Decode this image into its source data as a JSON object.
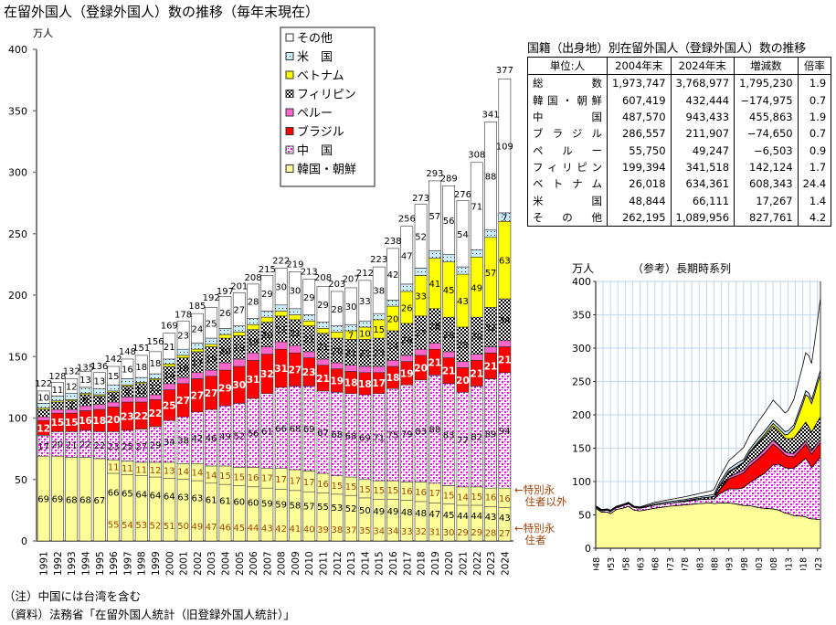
{
  "title": "在留外国人（登録外国人）数の推移（毎年末現在）",
  "notes": [
    "（注）中国には台湾を含む",
    "（資料）法務省「在留外国人統計（旧登録外国人統計）」"
  ],
  "annotations": {
    "non_special": "←特別永\n　住者以外",
    "special": "←特別永\n　住者"
  },
  "colors": {
    "korea": "#ffff99",
    "china": "#ff00ff",
    "brazil": "#ff0000",
    "peru": "#ff66cc",
    "philippines": "#000000",
    "vietnam": "#ffff00",
    "usa": "#ccecff",
    "other": "#ffffff",
    "axis": "#808080",
    "annotation": "#a0420a"
  },
  "table": {
    "title": "国籍（出身地）別在留外国人（登録外国人）数の推移",
    "headers": [
      "単位:人",
      "2004年末",
      "2024年末",
      "増減数",
      "倍率"
    ],
    "rows": [
      [
        "総　数",
        "1,973,747",
        "3,768,977",
        "1,795,230",
        "1.9"
      ],
      [
        "韓国・朝鮮",
        "607,419",
        "432,444",
        "−174,975",
        "0.7"
      ],
      [
        "中　国",
        "487,570",
        "943,433",
        "455,863",
        "1.9"
      ],
      [
        "ブラジル",
        "286,557",
        "211,907",
        "−74,650",
        "0.7"
      ],
      [
        "ペルー",
        "55,750",
        "49,247",
        "−6,503",
        "0.9"
      ],
      [
        "フィリピン",
        "199,394",
        "341,518",
        "142,124",
        "1.7"
      ],
      [
        "ベトナム",
        "26,018",
        "634,361",
        "608,343",
        "24.4"
      ],
      [
        "米　国",
        "48,844",
        "66,111",
        "17,267",
        "1.4"
      ],
      [
        "その他",
        "262,195",
        "1,089,956",
        "827,761",
        "4.2"
      ]
    ]
  },
  "chart_data": [
    {
      "type": "bar",
      "stacked": true,
      "title": "在留外国人（登録外国人）数の推移（毎年末現在）",
      "ylabel": "万人",
      "ylim": [
        0,
        400
      ],
      "yticks": [
        0,
        50,
        100,
        150,
        200,
        250,
        300,
        350,
        400
      ],
      "legend_position": "top-center",
      "categories": [
        "1991",
        "1992",
        "1993",
        "1994",
        "1995",
        "1996",
        "1997",
        "1998",
        "1999",
        "2000",
        "2001",
        "2002",
        "2003",
        "2004",
        "2005",
        "2006",
        "2007",
        "2008",
        "2009",
        "2010",
        "2011",
        "2012",
        "2013",
        "2014",
        "2015",
        "2016",
        "2017",
        "2018",
        "2019",
        "2020",
        "2021",
        "2022",
        "2023",
        "2024"
      ],
      "totals": [
        122,
        128,
        132,
        135,
        136,
        142,
        148,
        151,
        156,
        169,
        178,
        185,
        192,
        197,
        201,
        208,
        215,
        222,
        219,
        213,
        208,
        203,
        207,
        212,
        223,
        238,
        256,
        273,
        293,
        289,
        276,
        308,
        341,
        377
      ],
      "series": [
        {
          "key": "korea",
          "name": "韓国・朝鮮",
          "values": [
            69,
            69,
            68,
            68,
            67,
            66,
            65,
            64,
            64,
            64,
            63,
            63,
            61,
            61,
            60,
            60,
            59,
            59,
            58,
            57,
            55,
            53,
            52,
            50,
            49,
            49,
            48,
            48,
            47,
            45,
            44,
            44,
            43,
            43
          ],
          "special_permanent": [
            null,
            null,
            null,
            null,
            null,
            55,
            54,
            53,
            52,
            51,
            50,
            49,
            47,
            46,
            45,
            44,
            43,
            42,
            41,
            40,
            39,
            38,
            37,
            35,
            34,
            34,
            33,
            32,
            31,
            30,
            29,
            29,
            28,
            27
          ],
          "non_special": [
            null,
            null,
            null,
            null,
            null,
            11,
            11,
            11,
            12,
            13,
            14,
            14,
            14,
            15,
            15,
            16,
            17,
            17,
            17,
            17,
            16,
            15,
            15,
            15,
            15,
            15,
            16,
            16,
            17,
            15,
            14,
            15,
            16,
            16
          ]
        },
        {
          "key": "china",
          "name": "中　国",
          "values": [
            17,
            20,
            21,
            22,
            22,
            23,
            25,
            27,
            29,
            34,
            38,
            42,
            46,
            49,
            52,
            56,
            61,
            66,
            68,
            69,
            67,
            68,
            68,
            69,
            71,
            75,
            79,
            83,
            88,
            83,
            77,
            82,
            89,
            94
          ]
        },
        {
          "key": "brazil",
          "name": "ブラジル",
          "values": [
            12,
            15,
            15,
            16,
            18,
            20,
            23,
            22,
            22,
            25,
            27,
            27,
            27,
            29,
            30,
            31,
            32,
            31,
            27,
            23,
            21,
            19,
            18,
            18,
            17,
            18,
            19,
            20,
            21,
            21,
            20,
            21,
            21,
            21
          ]
        },
        {
          "key": "peru",
          "name": "ペルー",
          "values": [
            3,
            3,
            3,
            4,
            4,
            4,
            4,
            4,
            4,
            5,
            5,
            5,
            5,
            6,
            6,
            6,
            6,
            6,
            6,
            5,
            5,
            5,
            5,
            5,
            5,
            5,
            5,
            5,
            5,
            5,
            5,
            5,
            5,
            5
          ]
        },
        {
          "key": "philippines",
          "name": "フィリピン",
          "values": [
            6,
            6,
            7,
            9,
            7,
            8,
            9,
            11,
            12,
            14,
            16,
            17,
            19,
            20,
            19,
            19,
            20,
            21,
            21,
            21,
            21,
            20,
            21,
            22,
            23,
            24,
            26,
            27,
            28,
            28,
            28,
            30,
            32,
            34
          ]
        },
        {
          "key": "vietnam",
          "name": "ベトナム",
          "values": [
            1,
            1,
            1,
            1,
            1,
            1,
            1,
            1,
            1,
            2,
            2,
            2,
            2,
            3,
            3,
            4,
            4,
            4,
            4,
            4,
            4,
            5,
            7,
            10,
            15,
            20,
            26,
            33,
            41,
            45,
            43,
            49,
            57,
            63
          ]
        },
        {
          "key": "usa",
          "name": "米　国",
          "values": [
            4,
            4,
            5,
            5,
            5,
            5,
            5,
            4,
            4,
            4,
            5,
            5,
            5,
            5,
            5,
            5,
            5,
            5,
            5,
            5,
            5,
            5,
            5,
            5,
            5,
            5,
            6,
            6,
            6,
            6,
            6,
            6,
            6,
            7
          ]
        },
        {
          "key": "other",
          "name": "その他",
          "values": [
            10,
            11,
            12,
            13,
            13,
            15,
            16,
            18,
            18,
            21,
            23,
            24,
            25,
            26,
            27,
            28,
            29,
            30,
            30,
            29,
            29,
            28,
            30,
            33,
            38,
            42,
            47,
            52,
            57,
            56,
            54,
            71,
            88,
            109
          ]
        }
      ],
      "legend_order": [
        "other",
        "usa",
        "vietnam",
        "philippines",
        "peru",
        "brazil",
        "china",
        "korea"
      ]
    },
    {
      "type": "area",
      "stacked": true,
      "title": "（参考）長期時系列",
      "ylabel": "万人",
      "ylim": [
        0,
        400
      ],
      "yticks": [
        0,
        50,
        100,
        150,
        200,
        250,
        300,
        350,
        400
      ],
      "grid": true,
      "xticks": [
        "1948",
        "1953",
        "1958",
        "1963",
        "1968",
        "1973",
        "1978",
        "1983",
        "1988",
        "1993",
        "1998",
        "2003",
        "2008",
        "2013",
        "2018",
        "2023"
      ],
      "x": [
        1948,
        1950,
        1952,
        1953,
        1955,
        1958,
        1959,
        1961,
        1963,
        1968,
        1973,
        1978,
        1983,
        1987,
        1988,
        1990,
        1993,
        1996,
        1998,
        2000,
        2003,
        2005,
        2008,
        2010,
        2012,
        2013,
        2015,
        2018,
        2019,
        2020,
        2021,
        2022,
        2023,
        2024
      ],
      "series": [
        {
          "key": "korea",
          "name": "韓国・朝鮮",
          "values": [
            60,
            54,
            54,
            52,
            58,
            61,
            63,
            57,
            56,
            60,
            63,
            65,
            67,
            68,
            67,
            68,
            68,
            66,
            64,
            64,
            61,
            60,
            59,
            57,
            53,
            52,
            49,
            48,
            47,
            45,
            44,
            44,
            43,
            43
          ]
        },
        {
          "key": "china",
          "name": "中　国",
          "values": [
            2,
            2,
            3,
            3,
            3,
            4,
            4,
            4,
            4,
            5,
            5,
            5,
            6,
            6,
            7,
            14,
            21,
            23,
            27,
            34,
            46,
            52,
            66,
            69,
            68,
            68,
            71,
            83,
            88,
            83,
            77,
            82,
            89,
            94
          ]
        },
        {
          "key": "brazil",
          "name": "ブラジル",
          "values": [
            0,
            0,
            0,
            0,
            0,
            0,
            0,
            0,
            0,
            0,
            0,
            0,
            0,
            0,
            0,
            6,
            15,
            20,
            22,
            25,
            27,
            30,
            31,
            23,
            19,
            18,
            17,
            20,
            21,
            21,
            20,
            21,
            21,
            21
          ]
        },
        {
          "key": "peru",
          "name": "ペルー",
          "values": [
            0,
            0,
            0,
            0,
            0,
            0,
            0,
            0,
            0,
            0,
            0,
            0,
            0,
            0,
            0,
            1,
            3,
            4,
            4,
            5,
            5,
            6,
            6,
            5,
            5,
            5,
            5,
            5,
            5,
            5,
            5,
            5,
            5,
            5
          ]
        },
        {
          "key": "philippines",
          "name": "フィリピン",
          "values": [
            0,
            0,
            0,
            0,
            0,
            0,
            0,
            0,
            0,
            0,
            0,
            1,
            2,
            3,
            4,
            5,
            7,
            9,
            11,
            14,
            19,
            19,
            21,
            21,
            20,
            21,
            23,
            27,
            28,
            28,
            28,
            30,
            32,
            34
          ]
        },
        {
          "key": "vietnam",
          "name": "ベトナム",
          "values": [
            0,
            0,
            0,
            0,
            0,
            0,
            0,
            0,
            0,
            0,
            0,
            0,
            0,
            0,
            0,
            1,
            1,
            1,
            1,
            2,
            2,
            3,
            4,
            4,
            5,
            7,
            15,
            33,
            41,
            45,
            43,
            49,
            57,
            63
          ]
        },
        {
          "key": "usa",
          "name": "米　国",
          "values": [
            1,
            1,
            1,
            1,
            1,
            1,
            1,
            1,
            1,
            2,
            2,
            2,
            2,
            3,
            3,
            4,
            4,
            5,
            4,
            4,
            5,
            5,
            5,
            5,
            5,
            5,
            5,
            6,
            6,
            6,
            6,
            6,
            6,
            7
          ]
        },
        {
          "key": "other",
          "name": "その他",
          "values": [
            1,
            1,
            1,
            1,
            1,
            1,
            1,
            1,
            1,
            2,
            3,
            4,
            5,
            6,
            7,
            8,
            12,
            15,
            18,
            21,
            25,
            27,
            30,
            29,
            28,
            30,
            38,
            52,
            57,
            56,
            54,
            71,
            88,
            109
          ]
        }
      ]
    }
  ]
}
